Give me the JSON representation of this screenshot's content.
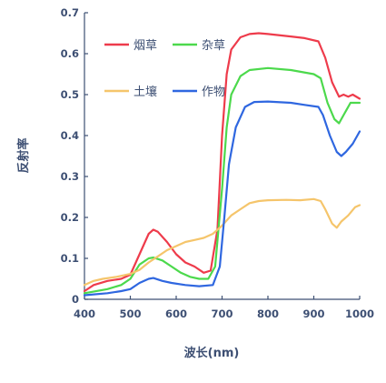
{
  "chart_data": {
    "type": "line",
    "title": "",
    "xlabel": "波长(nm)",
    "ylabel": "反射率",
    "xlim": [
      400,
      1000
    ],
    "ylim": [
      0,
      0.7
    ],
    "xticks": [
      "400",
      "500",
      "600",
      "700",
      "800",
      "900",
      "1000"
    ],
    "yticks": [
      "0",
      "0.1",
      "0.2",
      "0.3",
      "0.4",
      "0.5",
      "0.6",
      "0.7"
    ],
    "grid": false,
    "legend": "top-left",
    "series": [
      {
        "name": "烟草",
        "color": "#ee3b4b",
        "points": [
          [
            400,
            0.02
          ],
          [
            420,
            0.035
          ],
          [
            450,
            0.045
          ],
          [
            480,
            0.05
          ],
          [
            500,
            0.06
          ],
          [
            520,
            0.11
          ],
          [
            540,
            0.16
          ],
          [
            550,
            0.17
          ],
          [
            560,
            0.165
          ],
          [
            580,
            0.14
          ],
          [
            600,
            0.11
          ],
          [
            620,
            0.09
          ],
          [
            640,
            0.08
          ],
          [
            660,
            0.065
          ],
          [
            675,
            0.07
          ],
          [
            690,
            0.17
          ],
          [
            700,
            0.4
          ],
          [
            710,
            0.55
          ],
          [
            720,
            0.61
          ],
          [
            740,
            0.64
          ],
          [
            760,
            0.648
          ],
          [
            780,
            0.65
          ],
          [
            800,
            0.648
          ],
          [
            850,
            0.642
          ],
          [
            880,
            0.638
          ],
          [
            910,
            0.63
          ],
          [
            925,
            0.59
          ],
          [
            940,
            0.53
          ],
          [
            955,
            0.495
          ],
          [
            965,
            0.5
          ],
          [
            975,
            0.495
          ],
          [
            985,
            0.5
          ],
          [
            1000,
            0.49
          ]
        ]
      },
      {
        "name": "杂草",
        "color": "#4cd94c",
        "points": [
          [
            400,
            0.015
          ],
          [
            450,
            0.025
          ],
          [
            480,
            0.035
          ],
          [
            500,
            0.05
          ],
          [
            520,
            0.085
          ],
          [
            540,
            0.1
          ],
          [
            550,
            0.102
          ],
          [
            570,
            0.095
          ],
          [
            590,
            0.08
          ],
          [
            610,
            0.065
          ],
          [
            630,
            0.055
          ],
          [
            650,
            0.05
          ],
          [
            670,
            0.05
          ],
          [
            685,
            0.08
          ],
          [
            700,
            0.27
          ],
          [
            710,
            0.42
          ],
          [
            720,
            0.5
          ],
          [
            740,
            0.545
          ],
          [
            760,
            0.56
          ],
          [
            800,
            0.565
          ],
          [
            850,
            0.56
          ],
          [
            900,
            0.55
          ],
          [
            915,
            0.54
          ],
          [
            930,
            0.48
          ],
          [
            945,
            0.44
          ],
          [
            955,
            0.43
          ],
          [
            965,
            0.45
          ],
          [
            980,
            0.48
          ],
          [
            1000,
            0.48
          ]
        ]
      },
      {
        "name": "土壤",
        "color": "#f5c56b",
        "points": [
          [
            400,
            0.035
          ],
          [
            420,
            0.045
          ],
          [
            440,
            0.05
          ],
          [
            470,
            0.055
          ],
          [
            500,
            0.062
          ],
          [
            520,
            0.072
          ],
          [
            540,
            0.09
          ],
          [
            560,
            0.105
          ],
          [
            580,
            0.12
          ],
          [
            600,
            0.13
          ],
          [
            620,
            0.14
          ],
          [
            640,
            0.145
          ],
          [
            660,
            0.15
          ],
          [
            680,
            0.16
          ],
          [
            700,
            0.18
          ],
          [
            720,
            0.205
          ],
          [
            740,
            0.22
          ],
          [
            760,
            0.235
          ],
          [
            780,
            0.24
          ],
          [
            800,
            0.242
          ],
          [
            840,
            0.243
          ],
          [
            870,
            0.242
          ],
          [
            900,
            0.245
          ],
          [
            915,
            0.24
          ],
          [
            925,
            0.22
          ],
          [
            940,
            0.185
          ],
          [
            950,
            0.175
          ],
          [
            960,
            0.19
          ],
          [
            975,
            0.205
          ],
          [
            990,
            0.225
          ],
          [
            1000,
            0.23
          ]
        ]
      },
      {
        "name": "作物",
        "color": "#2f67e0",
        "points": [
          [
            400,
            0.01
          ],
          [
            450,
            0.015
          ],
          [
            480,
            0.02
          ],
          [
            500,
            0.025
          ],
          [
            520,
            0.04
          ],
          [
            540,
            0.05
          ],
          [
            550,
            0.052
          ],
          [
            570,
            0.045
          ],
          [
            590,
            0.04
          ],
          [
            620,
            0.035
          ],
          [
            650,
            0.032
          ],
          [
            680,
            0.035
          ],
          [
            695,
            0.08
          ],
          [
            705,
            0.2
          ],
          [
            715,
            0.33
          ],
          [
            730,
            0.42
          ],
          [
            750,
            0.47
          ],
          [
            770,
            0.482
          ],
          [
            800,
            0.483
          ],
          [
            850,
            0.48
          ],
          [
            880,
            0.475
          ],
          [
            910,
            0.47
          ],
          [
            920,
            0.45
          ],
          [
            935,
            0.4
          ],
          [
            950,
            0.36
          ],
          [
            960,
            0.35
          ],
          [
            970,
            0.36
          ],
          [
            985,
            0.38
          ],
          [
            1000,
            0.41
          ]
        ]
      }
    ]
  }
}
